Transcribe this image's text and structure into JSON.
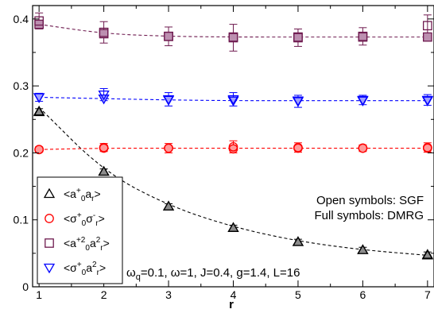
{
  "chart_data": {
    "type": "scatter",
    "xlabel": "r",
    "ylabel": "",
    "xlim": [
      0.9,
      7.1
    ],
    "ylim": [
      0,
      0.42
    ],
    "x_ticks": [
      1,
      2,
      3,
      4,
      5,
      6,
      7
    ],
    "y_ticks": [
      0,
      0.1,
      0.2,
      0.3,
      0.4
    ],
    "x_tick_labels": [
      "1",
      "2",
      "3",
      "4",
      "5",
      "6",
      "7"
    ],
    "y_tick_labels": [
      "0",
      "0.1",
      "0.2",
      "0.3",
      "0.4"
    ],
    "grid": false,
    "legend_position": "bottom-left",
    "annotations": {
      "open_symbols": "Open symbols: SGF",
      "full_symbols": "Full symbols: DMRG",
      "params": "ω_q=0.1, ω=1, J=0.4, g=1.4, L=16"
    },
    "series": [
      {
        "key": "aa",
        "legend": {
          "base": "<a",
          "s1": "+",
          "b1": "0",
          "mid": "a",
          "b2": "r",
          "s2": "",
          "end": ">"
        },
        "color": "#000000",
        "fill": "#8c8c8c",
        "marker": "triangle-up",
        "x": [
          1,
          2,
          3,
          4,
          5,
          6,
          7
        ],
        "sgf": [
          0.262,
          0.172,
          0.12,
          0.088,
          0.067,
          0.055,
          0.048
        ],
        "sgf_err": [
          0.004,
          0.004,
          0.004,
          0.004,
          0.004,
          0.004,
          0.004
        ],
        "dmrg": [
          0.261,
          0.172,
          0.12,
          0.088,
          0.067,
          0.055,
          0.047
        ],
        "fit": [
          0.268,
          0.172,
          0.121,
          0.089,
          0.068,
          0.055,
          0.047
        ]
      },
      {
        "key": "ss",
        "legend": {
          "base": "<σ",
          "s1": "+",
          "b1": "0",
          "mid": "σ",
          "b2": "r",
          "s2": "-",
          "end": ">"
        },
        "color": "#ff0000",
        "fill": "#ff9a9a",
        "marker": "circle",
        "x": [
          1,
          2,
          3,
          4,
          5,
          6,
          7
        ],
        "sgf": [
          0.205,
          0.208,
          0.207,
          0.209,
          0.208,
          0.207,
          0.208
        ],
        "sgf_err": [
          0.004,
          0.006,
          0.007,
          0.009,
          0.007,
          0.005,
          0.007
        ],
        "dmrg": [
          0.205,
          0.207,
          0.207,
          0.206,
          0.207,
          0.207,
          0.207
        ],
        "fit": [
          0.205,
          0.207,
          0.207,
          0.207,
          0.207,
          0.207,
          0.207
        ]
      },
      {
        "key": "a2a2",
        "legend": {
          "base": "<a",
          "s1": "+2",
          "b1": "0",
          "mid": "a",
          "b2": "r",
          "s2": "2",
          "end": ">"
        },
        "color": "#6e1a4f",
        "fill": "#bc8fb0",
        "marker": "square",
        "x": [
          1,
          2,
          3,
          4,
          5,
          6,
          7
        ],
        "sgf": [
          0.397,
          0.38,
          0.374,
          0.372,
          0.372,
          0.374,
          0.39
        ],
        "sgf_err": [
          0.012,
          0.016,
          0.014,
          0.02,
          0.013,
          0.013,
          0.016
        ],
        "dmrg": [
          0.392,
          0.378,
          0.374,
          0.373,
          0.373,
          0.373,
          0.373
        ],
        "fit": [
          0.392,
          0.378,
          0.374,
          0.373,
          0.373,
          0.373,
          0.373
        ]
      },
      {
        "key": "sa2",
        "legend": {
          "base": "<σ",
          "s1": "+",
          "b1": "0",
          "mid": "a",
          "b2": "r",
          "s2": "2",
          "end": ">"
        },
        "color": "#0000ff",
        "fill": "#a0a0ff",
        "marker": "triangle-down",
        "x": [
          1,
          2,
          3,
          4,
          5,
          6,
          7
        ],
        "sgf": [
          0.283,
          0.287,
          0.28,
          0.28,
          0.277,
          0.279,
          0.279
        ],
        "sgf_err": [
          0.006,
          0.009,
          0.01,
          0.01,
          0.009,
          0.007,
          0.008
        ],
        "dmrg": [
          0.283,
          0.281,
          0.279,
          0.278,
          0.278,
          0.278,
          0.278
        ],
        "fit": [
          0.283,
          0.281,
          0.279,
          0.278,
          0.278,
          0.278,
          0.278
        ]
      }
    ]
  }
}
